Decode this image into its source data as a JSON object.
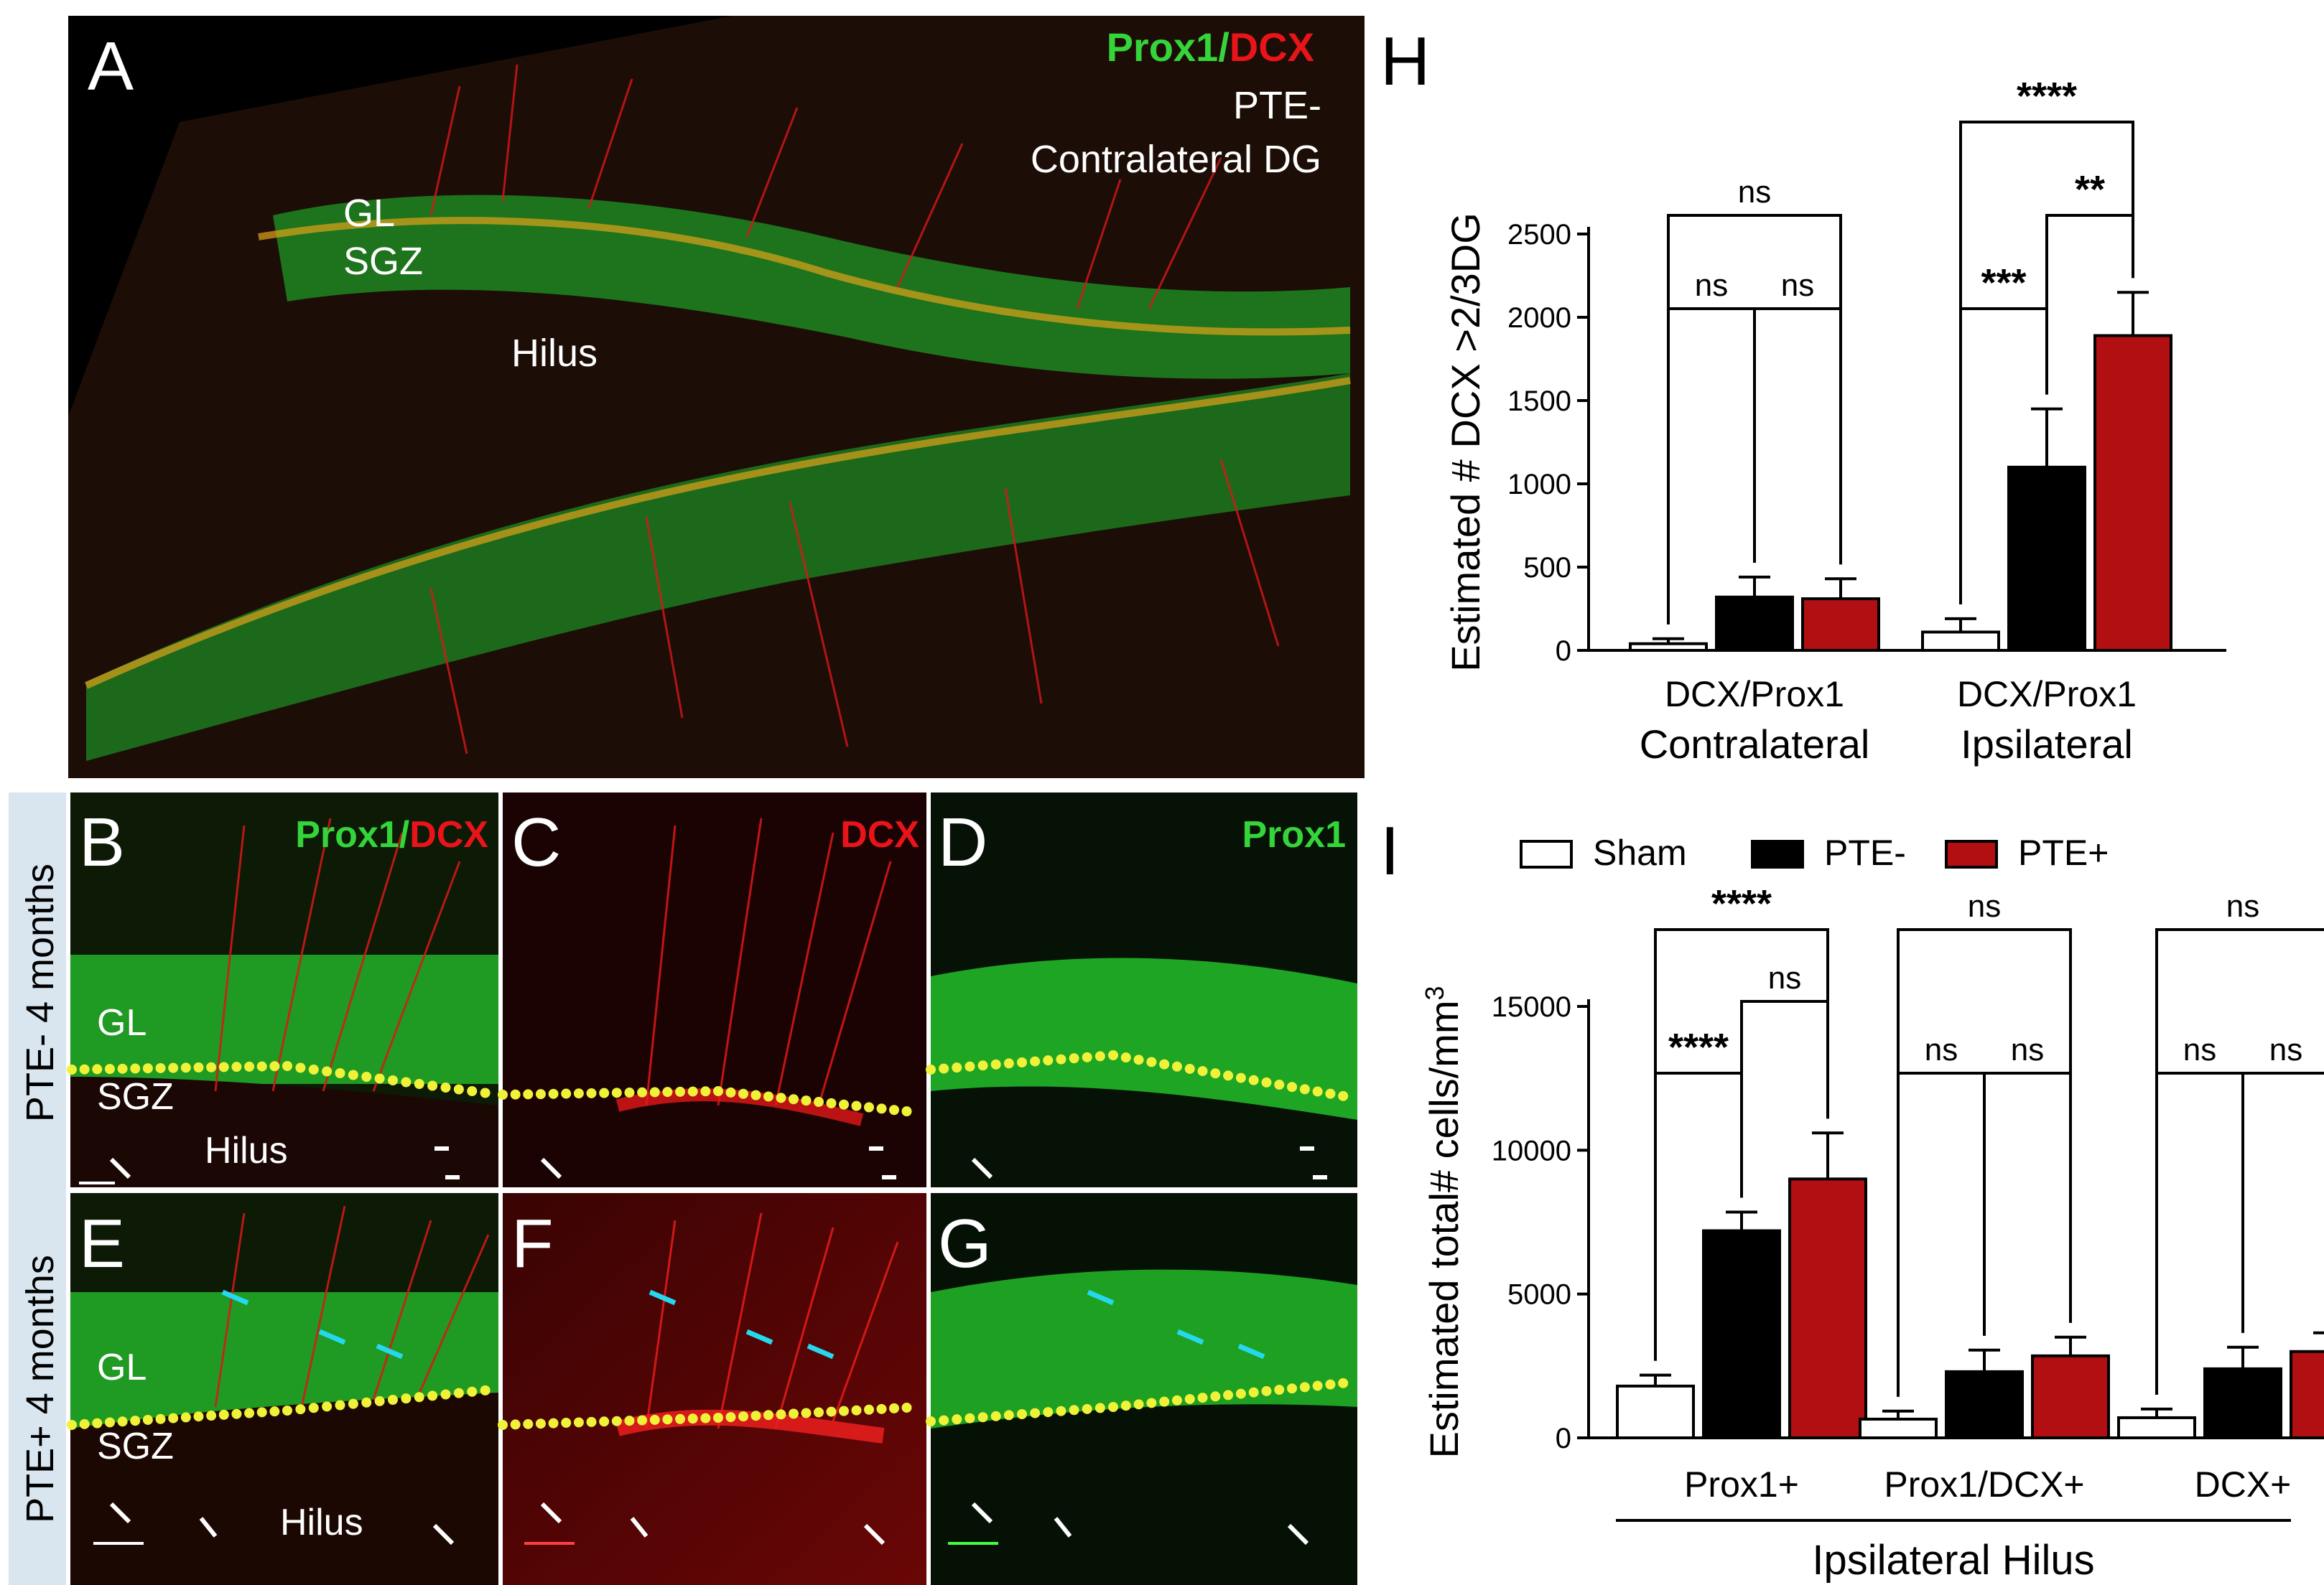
{
  "panels": {
    "A": {
      "letter": "A",
      "stain_green": "Prox1/",
      "stain_red": "DCX",
      "condition_line1": "PTE-",
      "condition_line2": "Contralateral DG",
      "labels": {
        "gl": "GL",
        "sgz": "SGZ",
        "hilus": "Hilus"
      }
    },
    "B": {
      "letter": "B",
      "stain_green": "Prox1/",
      "stain_red": "DCX",
      "labels": {
        "gl": "GL",
        "sgz": "SGZ",
        "hilus": "Hilus"
      }
    },
    "C": {
      "letter": "C",
      "stain_red": "DCX"
    },
    "D": {
      "letter": "D",
      "stain_green": "Prox1"
    },
    "E": {
      "letter": "E",
      "labels": {
        "gl": "GL",
        "sgz": "SGZ",
        "hilus": "Hilus"
      }
    },
    "F": {
      "letter": "F"
    },
    "G": {
      "letter": "G"
    },
    "H": {
      "letter": "H"
    },
    "I": {
      "letter": "I"
    }
  },
  "row_labels": {
    "top": "PTE- 4 months",
    "bottom": "PTE+ 4 months"
  },
  "colors": {
    "green": "#35d43a",
    "red": "#e8141a",
    "sham": "#ffffff",
    "pte_minus": "#000000",
    "pte_plus": "#b20f12",
    "row_label_bg": "#d9e6f0",
    "sgz_dots": "#f0f23a",
    "cyan_arrow": "#25d8ee"
  },
  "legend": {
    "items": [
      {
        "name": "Sham"
      },
      {
        "name": "PTE-"
      },
      {
        "name": "PTE+"
      }
    ]
  },
  "chart_data": [
    {
      "panel": "H",
      "type": "bar",
      "ylabel": "Estimated # DCX >2/3DG",
      "ylim": [
        0,
        2500
      ],
      "yticks": [
        0,
        500,
        1000,
        1500,
        2000,
        2500
      ],
      "groups": [
        {
          "sublabel": "DCX/Prox1",
          "label": "Contralateral",
          "values": [
            40,
            320,
            310
          ],
          "errors": [
            30,
            120,
            120
          ]
        },
        {
          "sublabel": "DCX/Prox1",
          "label": "Ipsilateral",
          "values": [
            110,
            1100,
            1890
          ],
          "errors": [
            80,
            350,
            260
          ]
        }
      ],
      "series": [
        {
          "name": "Sham"
        },
        {
          "name": "PTE-"
        },
        {
          "name": "PTE+"
        }
      ],
      "significance": [
        {
          "group": 0,
          "from": 0,
          "to": 2,
          "text": "ns",
          "level": 2
        },
        {
          "group": 0,
          "from": 0,
          "to": 1,
          "text": "ns",
          "level": 1
        },
        {
          "group": 0,
          "from": 1,
          "to": 2,
          "text": "ns",
          "level": 1
        },
        {
          "group": 1,
          "from": 0,
          "to": 2,
          "text": "****",
          "level": 3
        },
        {
          "group": 1,
          "from": 1,
          "to": 2,
          "text": "**",
          "level": 2
        },
        {
          "group": 1,
          "from": 0,
          "to": 1,
          "text": "***",
          "level": 1
        }
      ],
      "grid": false
    },
    {
      "panel": "I",
      "type": "bar",
      "ylabel": "Estimated total# cells/mm",
      "ylabel_sup": "3",
      "ylim": [
        0,
        15000
      ],
      "yticks": [
        0,
        5000,
        10000,
        15000
      ],
      "xlabel": "Ipsilateral Hilus",
      "groups": [
        {
          "label": "Prox1+",
          "values": [
            1800,
            7200,
            9000
          ],
          "errors": [
            380,
            650,
            1600
          ]
        },
        {
          "label": "Prox1/DCX+",
          "values": [
            650,
            2300,
            2850
          ],
          "errors": [
            280,
            750,
            650
          ]
        },
        {
          "label": "DCX+",
          "values": [
            700,
            2400,
            3000
          ],
          "errors": [
            300,
            750,
            650
          ]
        }
      ],
      "series": [
        {
          "name": "Sham"
        },
        {
          "name": "PTE-"
        },
        {
          "name": "PTE+"
        }
      ],
      "significance": [
        {
          "group": 0,
          "from": 0,
          "to": 2,
          "text": "****",
          "level": 3
        },
        {
          "group": 0,
          "from": 1,
          "to": 2,
          "text": "ns",
          "level": 2
        },
        {
          "group": 0,
          "from": 0,
          "to": 1,
          "text": "****",
          "level": 1
        },
        {
          "group": 1,
          "from": 0,
          "to": 2,
          "text": "ns",
          "level": 3
        },
        {
          "group": 1,
          "from": 0,
          "to": 1,
          "text": "ns",
          "level": 1
        },
        {
          "group": 1,
          "from": 1,
          "to": 2,
          "text": "ns",
          "level": 1
        },
        {
          "group": 2,
          "from": 0,
          "to": 2,
          "text": "ns",
          "level": 3
        },
        {
          "group": 2,
          "from": 0,
          "to": 1,
          "text": "ns",
          "level": 1
        },
        {
          "group": 2,
          "from": 1,
          "to": 2,
          "text": "ns",
          "level": 1
        }
      ],
      "grid": false
    }
  ]
}
